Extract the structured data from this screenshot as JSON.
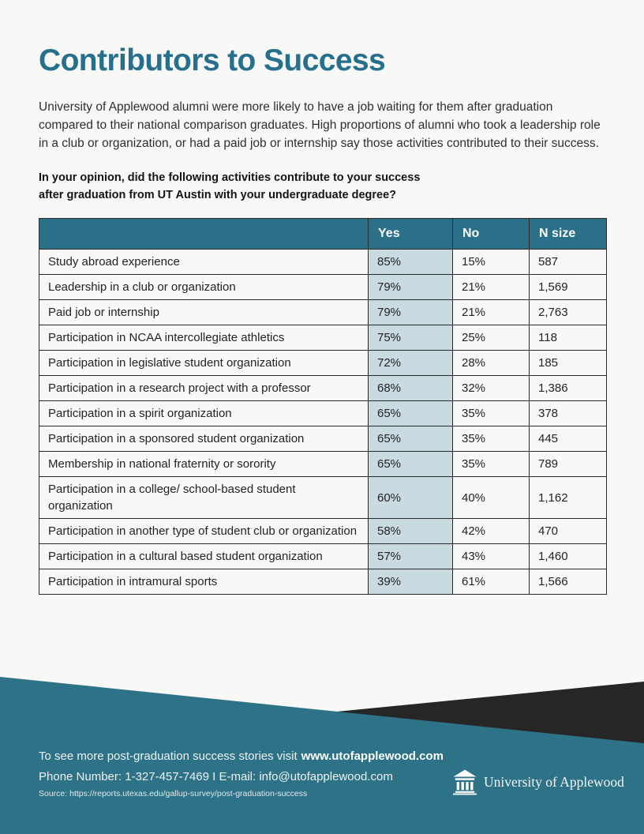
{
  "page": {
    "title": "Contributors to Success",
    "intro": "University of Applewood alumni were more likely to have a job waiting for them after graduation compared to their national comparison graduates. High proportions of alumni who took a leadership role in a club or organization, or had a paid job or internship say those activities contributed to their success.",
    "question_line1": "In your opinion, did the following activities contribute to your success",
    "question_line2": "after graduation from UT Austin with your undergraduate degree?"
  },
  "table": {
    "columns": [
      "",
      "Yes",
      "No",
      "N size"
    ],
    "rows": [
      {
        "label": "Study abroad experience",
        "yes": "85%",
        "no": "15%",
        "n": "587"
      },
      {
        "label": "Leadership in a club or organization",
        "yes": "79%",
        "no": "21%",
        "n": "1,569"
      },
      {
        "label": "Paid job or internship",
        "yes": "79%",
        "no": "21%",
        "n": "2,763"
      },
      {
        "label": "Participation in NCAA intercollegiate athletics",
        "yes": "75%",
        "no": "25%",
        "n": "118"
      },
      {
        "label": "Participation in legislative student organization",
        "yes": "72%",
        "no": "28%",
        "n": "185"
      },
      {
        "label": "Participation in a research project with a professor",
        "yes": "68%",
        "no": "32%",
        "n": "1,386"
      },
      {
        "label": "Participation in a spirit organization",
        "yes": "65%",
        "no": "35%",
        "n": "378"
      },
      {
        "label": "Participation in a sponsored student organization",
        "yes": "65%",
        "no": "35%",
        "n": "445"
      },
      {
        "label": "Membership in national fraternity or sorority",
        "yes": "65%",
        "no": "35%",
        "n": "789"
      },
      {
        "label": "Participation in a college/ school-based student organization",
        "yes": "60%",
        "no": "40%",
        "n": "1,162"
      },
      {
        "label": "Participation in another type of student club or organization",
        "yes": "58%",
        "no": "42%",
        "n": "470"
      },
      {
        "label": "Participation in a cultural based student organization",
        "yes": "57%",
        "no": "43%",
        "n": "1,460"
      },
      {
        "label": "Participation in intramural sports",
        "yes": "39%",
        "no": "61%",
        "n": "1,566"
      }
    ]
  },
  "footer": {
    "visit_prefix": "To see more post-graduation success stories visit",
    "visit_url": "www.utofapplewood.com",
    "contact_line": "Phone Number: 1-327-457-7469 I  E-mail: info@utofapplewood.com",
    "source_line": "Source: https://reports.utexas.edu/gallup-survey/post-graduation-success",
    "logo_text": "University of Applewood"
  },
  "colors": {
    "title_teal": "#26708e",
    "table_header_teal": "#2a7089",
    "yes_column_bg": "#c9dae0",
    "table_border": "#2b2b2b",
    "footer_teal": "#2d7287",
    "footer_dark_shape": "#262626",
    "page_background": "#f8f8f7"
  },
  "icons": {
    "logo_icon": "university-building-icon"
  }
}
